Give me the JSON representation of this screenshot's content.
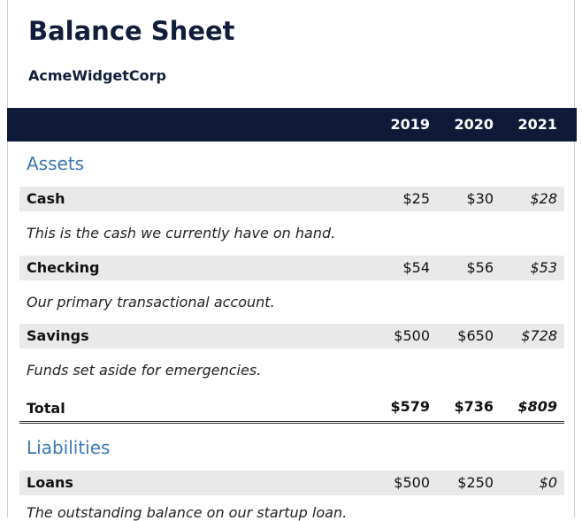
{
  "title": "Balance Sheet",
  "company": "AcmeWidgetCorp",
  "years": [
    "2019",
    "2020",
    "2021"
  ],
  "assets": {
    "heading": "Assets",
    "rows": [
      {
        "label": "Cash",
        "values": [
          "$25",
          "$30",
          "$28"
        ],
        "note": "This is the cash we currently have on hand."
      },
      {
        "label": "Checking",
        "values": [
          "$54",
          "$56",
          "$53"
        ],
        "note": "Our primary transactional account."
      },
      {
        "label": "Savings",
        "values": [
          "$500",
          "$650",
          "$728"
        ],
        "note": "Funds set aside for emergencies."
      }
    ],
    "total": {
      "label": "Total",
      "values": [
        "$579",
        "$736",
        "$809"
      ]
    }
  },
  "liabilities": {
    "heading": "Liabilities",
    "rows": [
      {
        "label": "Loans",
        "values": [
          "$500",
          "$250",
          "$0"
        ],
        "note": "The outstanding balance on our startup loan."
      }
    ]
  },
  "colors": {
    "header_bg": "#0f1a38",
    "section": "#3a78b5",
    "row_shade": "#e9e9e9"
  }
}
